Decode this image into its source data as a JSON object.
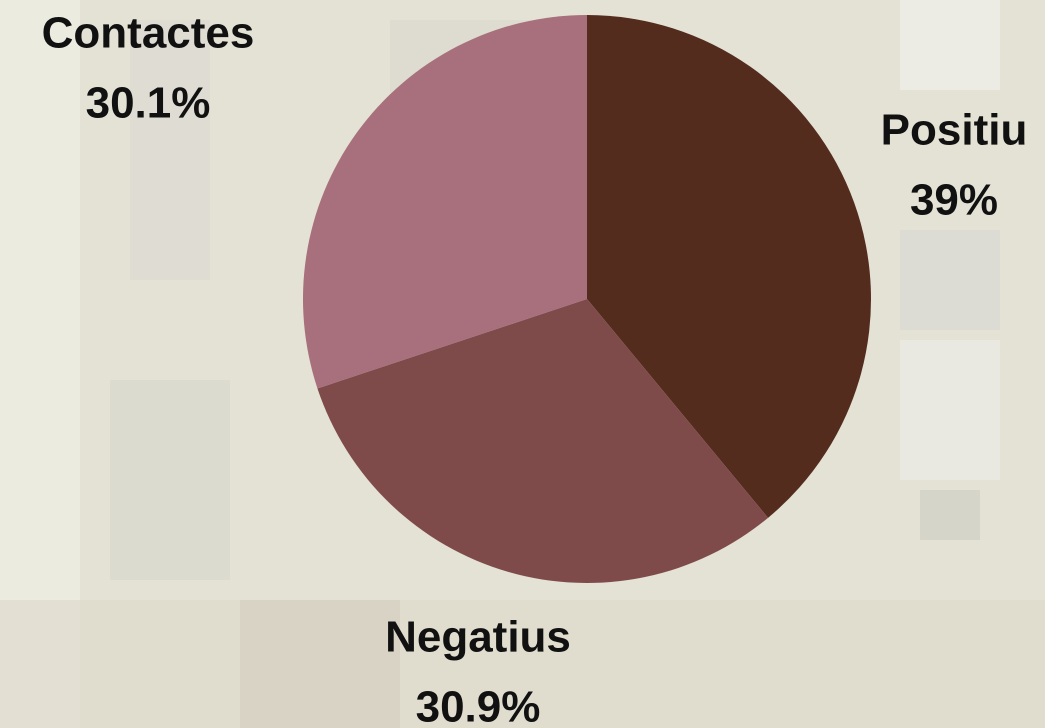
{
  "chart_data": {
    "type": "pie",
    "categories": [
      "Positiu",
      "Negatius",
      "Contactes"
    ],
    "values": [
      39,
      30.9,
      30.1
    ],
    "value_labels": [
      "39%",
      "30.9%",
      "30.1%"
    ],
    "colors": [
      "#542c1e",
      "#7f4b4a",
      "#a7707c"
    ]
  }
}
